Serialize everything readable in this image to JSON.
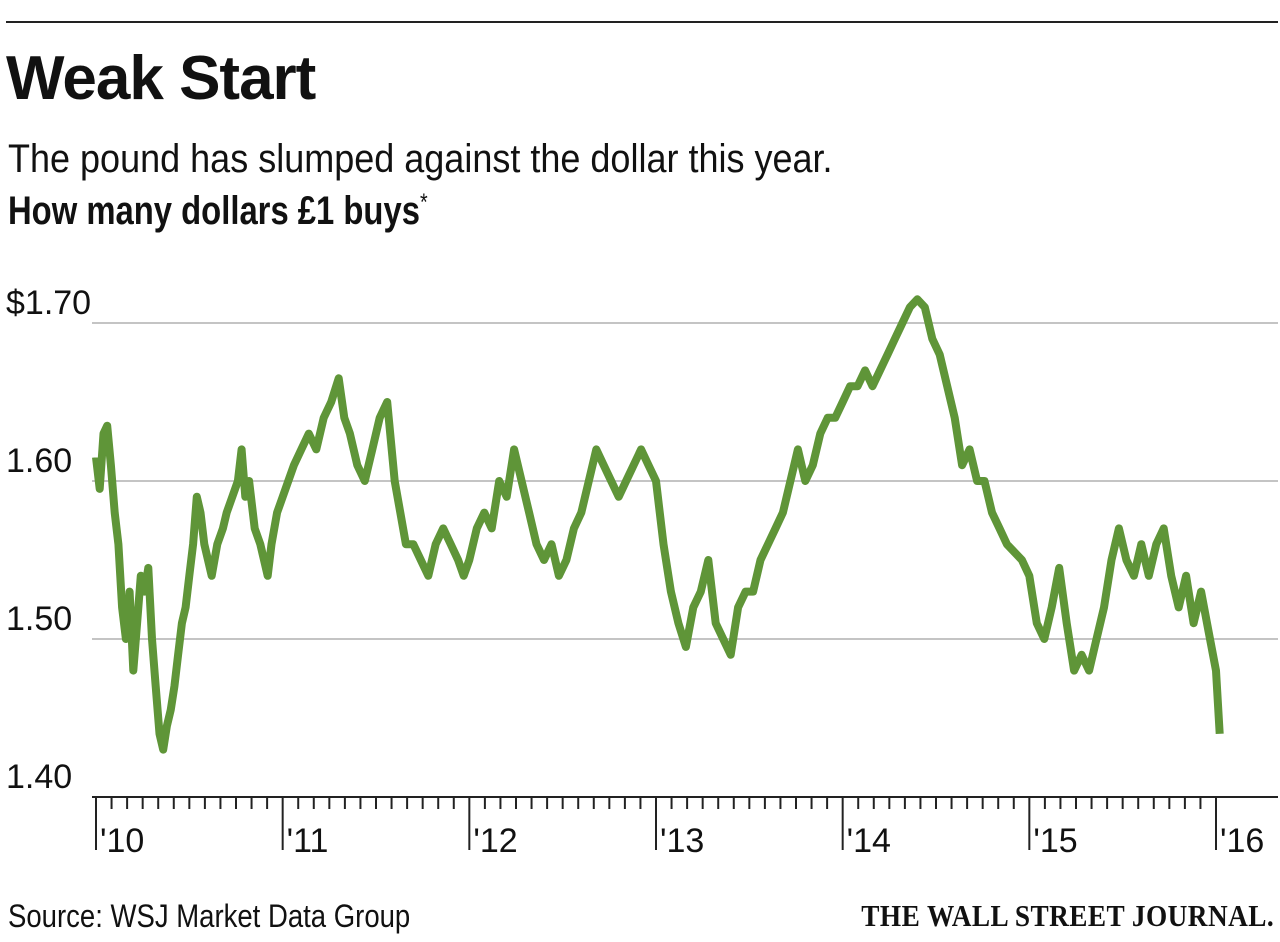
{
  "header": {
    "title": "Weak Start",
    "subtitle": "The pound has slumped against the dollar this year.",
    "unit_label": "How many dollars £1 buys",
    "unit_note_mark": "*"
  },
  "footer": {
    "source": "Source: WSJ Market Data Group",
    "brand": "THE WALL STREET JOURNAL."
  },
  "colors": {
    "line": "#5f9538",
    "grid": "#c4c4c4",
    "axis": "#222222",
    "text": "#111111"
  },
  "chart_data": {
    "type": "line",
    "title": "Weak Start",
    "subtitle": "The pound has slumped against the dollar this year.",
    "ylabel": "How many dollars £1 buys*",
    "ylim": [
      1.4,
      1.7
    ],
    "yticks": [
      1.4,
      1.5,
      1.6,
      1.7
    ],
    "ytick_labels": [
      "1.40",
      "1.50",
      "1.60",
      "$1.70"
    ],
    "xticks": [
      2010,
      2011,
      2012,
      2013,
      2014,
      2015,
      2016
    ],
    "xtick_labels": [
      "'10",
      "'11",
      "'12",
      "'13",
      "'14",
      "'15",
      "'16"
    ],
    "grid": true,
    "legend": "none",
    "series": [
      {
        "x": [
          2010.0,
          2010.02,
          2010.04,
          2010.06,
          2010.08,
          2010.1,
          2010.12,
          2010.14,
          2010.16,
          2010.18,
          2010.2,
          2010.22,
          2010.24,
          2010.26,
          2010.28,
          2010.3,
          2010.32,
          2010.34,
          2010.36,
          2010.38,
          2010.4,
          2010.42,
          2010.44,
          2010.46,
          2010.48,
          2010.5,
          2010.52,
          2010.54,
          2010.56,
          2010.58,
          2010.6,
          2010.62,
          2010.65,
          2010.68,
          2010.7,
          2010.73,
          2010.76,
          2010.78,
          2010.8,
          2010.82,
          2010.85,
          2010.88,
          2010.9,
          2010.92,
          2010.94,
          2010.97,
          2011.0,
          2011.03,
          2011.06,
          2011.1,
          2011.14,
          2011.18,
          2011.22,
          2011.26,
          2011.3,
          2011.33,
          2011.36,
          2011.4,
          2011.44,
          2011.48,
          2011.52,
          2011.56,
          2011.6,
          2011.63,
          2011.66,
          2011.7,
          2011.74,
          2011.78,
          2011.82,
          2011.86,
          2011.9,
          2011.94,
          2011.97,
          2012.0,
          2012.04,
          2012.08,
          2012.12,
          2012.16,
          2012.2,
          2012.24,
          2012.28,
          2012.32,
          2012.36,
          2012.4,
          2012.44,
          2012.48,
          2012.52,
          2012.56,
          2012.6,
          2012.64,
          2012.68,
          2012.72,
          2012.76,
          2012.8,
          2012.84,
          2012.88,
          2012.92,
          2012.96,
          2013.0,
          2013.04,
          2013.08,
          2013.12,
          2013.16,
          2013.2,
          2013.24,
          2013.28,
          2013.32,
          2013.36,
          2013.4,
          2013.44,
          2013.48,
          2013.52,
          2013.56,
          2013.6,
          2013.64,
          2013.68,
          2013.72,
          2013.76,
          2013.8,
          2013.84,
          2013.88,
          2013.92,
          2013.96,
          2014.0,
          2014.04,
          2014.08,
          2014.12,
          2014.16,
          2014.2,
          2014.24,
          2014.28,
          2014.32,
          2014.36,
          2014.4,
          2014.44,
          2014.48,
          2014.52,
          2014.56,
          2014.6,
          2014.64,
          2014.68,
          2014.72,
          2014.76,
          2014.8,
          2014.84,
          2014.88,
          2014.92,
          2014.96,
          2015.0,
          2015.04,
          2015.08,
          2015.12,
          2015.16,
          2015.2,
          2015.24,
          2015.28,
          2015.32,
          2015.36,
          2015.4,
          2015.44,
          2015.48,
          2015.52,
          2015.56,
          2015.6,
          2015.64,
          2015.68,
          2015.72,
          2015.76,
          2015.8,
          2015.84,
          2015.88,
          2015.92,
          2015.96,
          2016.0,
          2016.02
        ],
        "values": [
          1.615,
          1.595,
          1.63,
          1.635,
          1.61,
          1.58,
          1.56,
          1.52,
          1.5,
          1.53,
          1.48,
          1.51,
          1.54,
          1.53,
          1.545,
          1.5,
          1.47,
          1.44,
          1.43,
          1.445,
          1.455,
          1.47,
          1.49,
          1.51,
          1.52,
          1.54,
          1.56,
          1.59,
          1.58,
          1.56,
          1.55,
          1.54,
          1.56,
          1.57,
          1.58,
          1.59,
          1.6,
          1.62,
          1.59,
          1.6,
          1.57,
          1.56,
          1.55,
          1.54,
          1.56,
          1.58,
          1.59,
          1.6,
          1.61,
          1.62,
          1.63,
          1.62,
          1.64,
          1.65,
          1.665,
          1.64,
          1.63,
          1.61,
          1.6,
          1.62,
          1.64,
          1.65,
          1.6,
          1.58,
          1.56,
          1.56,
          1.55,
          1.54,
          1.56,
          1.57,
          1.56,
          1.55,
          1.54,
          1.55,
          1.57,
          1.58,
          1.57,
          1.6,
          1.59,
          1.62,
          1.6,
          1.58,
          1.56,
          1.55,
          1.56,
          1.54,
          1.55,
          1.57,
          1.58,
          1.6,
          1.62,
          1.61,
          1.6,
          1.59,
          1.6,
          1.61,
          1.62,
          1.61,
          1.6,
          1.56,
          1.53,
          1.51,
          1.495,
          1.52,
          1.53,
          1.55,
          1.51,
          1.5,
          1.49,
          1.52,
          1.53,
          1.53,
          1.55,
          1.56,
          1.57,
          1.58,
          1.6,
          1.62,
          1.6,
          1.61,
          1.63,
          1.64,
          1.64,
          1.65,
          1.66,
          1.66,
          1.67,
          1.66,
          1.67,
          1.68,
          1.69,
          1.7,
          1.71,
          1.715,
          1.71,
          1.69,
          1.68,
          1.66,
          1.64,
          1.61,
          1.62,
          1.6,
          1.6,
          1.58,
          1.57,
          1.56,
          1.555,
          1.55,
          1.54,
          1.51,
          1.5,
          1.52,
          1.545,
          1.51,
          1.48,
          1.49,
          1.48,
          1.5,
          1.52,
          1.55,
          1.57,
          1.55,
          1.54,
          1.56,
          1.54,
          1.56,
          1.57,
          1.54,
          1.52,
          1.54,
          1.51,
          1.53,
          1.505,
          1.48,
          1.44
        ]
      }
    ]
  }
}
